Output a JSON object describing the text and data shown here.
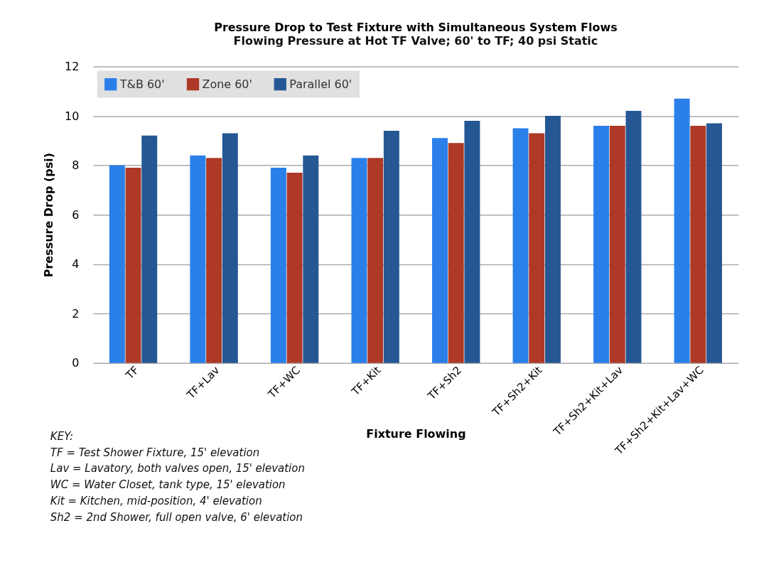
{
  "chart_data": {
    "type": "bar",
    "title": "Pressure Drop to Test Fixture with Simultaneous System Flows",
    "subtitle": "Flowing Pressure at Hot TF Valve; 60' to TF; 40 psi Static",
    "xlabel": "Fixture Flowing",
    "ylabel": "Pressure Drop (psi)",
    "categories": [
      "TF",
      "TF+Lav",
      "TF+WC",
      "TF+Kit",
      "TF+Sh2",
      "TF+Sh2+Kit",
      "TF+Sh2+Kit+Lav",
      "TF+Sh2+Kit+Lav+WC"
    ],
    "series": [
      {
        "name": "T&B 60'",
        "color": "#2a7fe9",
        "values": [
          8.0,
          8.4,
          7.9,
          8.3,
          9.1,
          9.5,
          9.6,
          10.7
        ]
      },
      {
        "name": "Zone 60'",
        "color": "#ad3926",
        "values": [
          7.9,
          8.3,
          7.7,
          8.3,
          8.9,
          9.3,
          9.6,
          9.6
        ]
      },
      {
        "name": "Parallel 60'",
        "color": "#255794",
        "values": [
          9.2,
          9.3,
          8.4,
          9.4,
          9.8,
          10.0,
          10.2,
          9.7
        ]
      }
    ],
    "ylim": [
      0,
      12
    ],
    "yticks": [
      0,
      2,
      4,
      6,
      8,
      10,
      12
    ],
    "grid": "y",
    "legend": "top left",
    "annotations": [
      "KEY:",
      "TF = Test Shower Fixture, 15' elevation",
      "Lav = Lavatory, both valves open, 15' elevation",
      "WC = Water Closet, tank type, 15' elevation",
      "Kit = Kitchen, mid-position, 4' elevation",
      "Sh2 = 2nd Shower, full open valve, 6' elevation"
    ]
  }
}
